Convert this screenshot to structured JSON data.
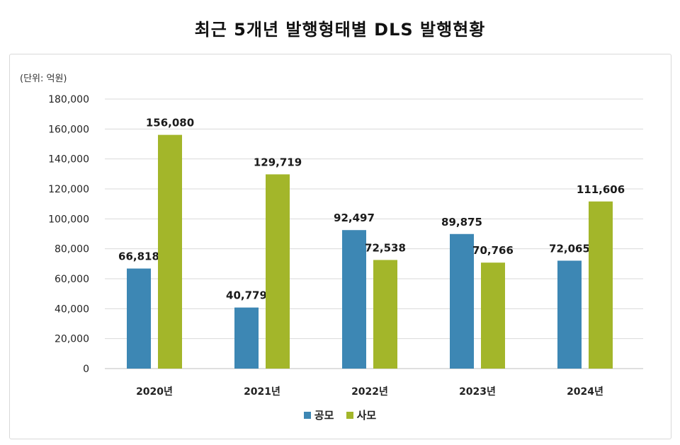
{
  "chart_data": {
    "type": "bar",
    "title": "최근 5개년 발행형태별 DLS 발행현황",
    "unit_label": "(단위: 억원)",
    "categories": [
      "2020년",
      "2021년",
      "2022년",
      "2023년",
      "2024년"
    ],
    "series": [
      {
        "name": "공모",
        "color": "#3d87b4",
        "values": [
          66818,
          40779,
          92497,
          89875,
          72065
        ],
        "labels": [
          "66,818",
          "40,779",
          "92,497",
          "89,875",
          "72,065"
        ]
      },
      {
        "name": "사모",
        "color": "#a3b62a",
        "values": [
          156080,
          129719,
          72538,
          70766,
          111606
        ],
        "labels": [
          "156,080",
          "129,719",
          "72,538",
          "70,766",
          "111,606"
        ]
      }
    ],
    "yticks": [
      "0",
      "20,000",
      "40,000",
      "60,000",
      "80,000",
      "100,000",
      "120,000",
      "140,000",
      "160,000",
      "180,000"
    ],
    "ylim": [
      0,
      180000
    ],
    "grid": true,
    "legend_position": "bottom"
  }
}
